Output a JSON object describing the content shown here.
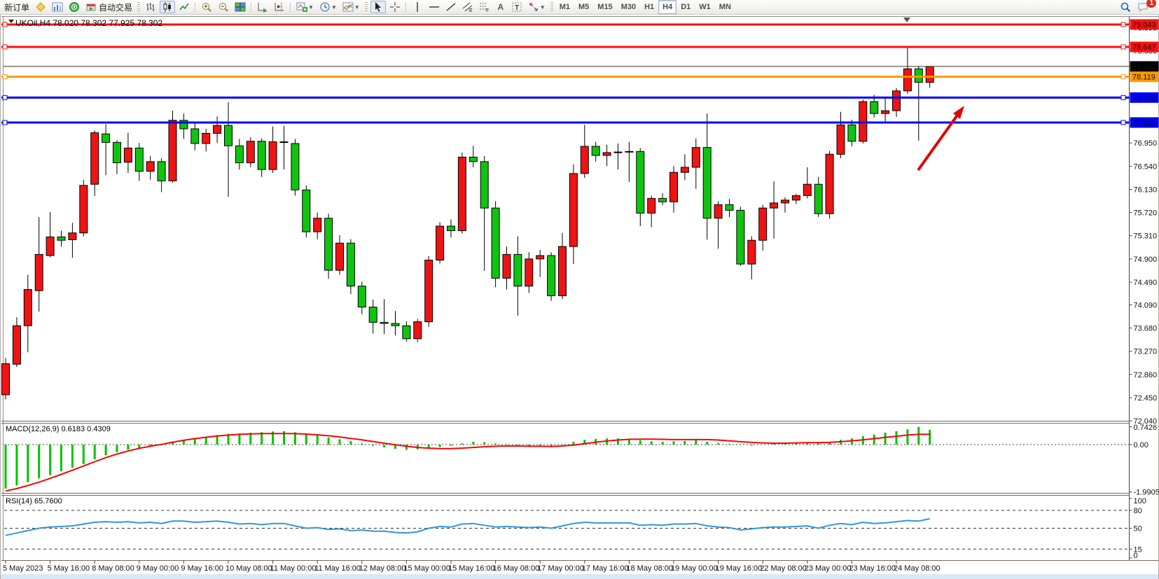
{
  "toolbar": {
    "new_order_label": "新订单",
    "auto_trading_label": "自动交易",
    "text_tool_glyph": "A",
    "label_tool_glyph": "T",
    "channel_tool_glyph": "E",
    "fibonacci_tool_glyph": "F",
    "timeframes": [
      "M1",
      "M5",
      "M15",
      "M30",
      "H1",
      "H4",
      "D1",
      "W1",
      "MN"
    ],
    "active_timeframe": "H4",
    "notification_badge": "1"
  },
  "chart_data": {
    "type": "candlestick",
    "symbol_title": "UKOil,H4 78.020 78.302 77.925 78.302",
    "current_bar": {
      "open": "78.020",
      "high": "78.302",
      "low": "77.925",
      "close": "78.302"
    },
    "price_axis_ticks": [
      "78.990",
      "78.580",
      "78.170",
      "77.760",
      "77.350",
      "76.950",
      "76.540",
      "76.130",
      "75.720",
      "75.310",
      "74.900",
      "74.490",
      "74.090",
      "73.680",
      "73.270",
      "72.860",
      "72.450",
      "72.040"
    ],
    "price_badges": [
      {
        "value": "79.043",
        "color": "#fe0e0e"
      },
      {
        "value": "78.647",
        "color": "#fe0e0e"
      },
      {
        "value": "78.302",
        "color": "#000000"
      },
      {
        "value": "78.119",
        "color": "#ff9800"
      },
      {
        "value": "77.752",
        "color": "#0000fe"
      },
      {
        "value": "77.311",
        "color": "#0000fe"
      }
    ],
    "horizontal_lines": [
      {
        "price": 79.043,
        "color": "#fe0e0e"
      },
      {
        "price": 78.647,
        "color": "#fe0e0e"
      },
      {
        "price": 78.119,
        "color": "#ff9800"
      },
      {
        "price": 77.752,
        "color": "#0000fe"
      },
      {
        "price": 77.311,
        "color": "#0000fe"
      }
    ],
    "bid_line_price": 78.302,
    "colors": {
      "bull": "#ef1414",
      "bear": "#0fc40f",
      "macd_hist": "#00c400",
      "macd_signal": "#f50505",
      "rsi": "#2f97dc",
      "arrow": "#e00000"
    },
    "candles_ohlc": [
      [
        72.5,
        73.15,
        72.42,
        73.05
      ],
      [
        73.04,
        73.87,
        72.99,
        73.72
      ],
      [
        73.72,
        74.62,
        73.25,
        74.36
      ],
      [
        74.34,
        75.64,
        73.97,
        74.98
      ],
      [
        74.96,
        75.73,
        74.93,
        75.29
      ],
      [
        75.29,
        75.4,
        75.12,
        75.23
      ],
      [
        75.24,
        75.54,
        74.92,
        75.36
      ],
      [
        75.36,
        76.3,
        75.3,
        76.2
      ],
      [
        76.22,
        77.17,
        76.01,
        77.13
      ],
      [
        77.11,
        77.28,
        76.38,
        76.96
      ],
      [
        76.96,
        77.0,
        76.4,
        76.6
      ],
      [
        76.61,
        77.13,
        76.42,
        76.86
      ],
      [
        76.86,
        76.95,
        76.28,
        76.45
      ],
      [
        76.45,
        76.72,
        76.3,
        76.62
      ],
      [
        76.62,
        76.68,
        76.08,
        76.28
      ],
      [
        76.28,
        77.52,
        76.25,
        77.35
      ],
      [
        77.35,
        77.47,
        77.02,
        77.2
      ],
      [
        77.2,
        77.3,
        76.82,
        76.94
      ],
      [
        76.94,
        77.2,
        76.8,
        77.12
      ],
      [
        77.12,
        77.42,
        76.95,
        77.26
      ],
      [
        77.26,
        77.67,
        76.0,
        76.9
      ],
      [
        76.9,
        77.02,
        76.48,
        76.6
      ],
      [
        76.6,
        77.05,
        76.52,
        76.98
      ],
      [
        76.98,
        77.03,
        76.35,
        76.48
      ],
      [
        76.48,
        77.24,
        76.42,
        76.97
      ],
      [
        76.97,
        77.25,
        76.48,
        76.96
      ],
      [
        76.94,
        77.02,
        76.02,
        76.12
      ],
      [
        76.12,
        76.2,
        75.28,
        75.38
      ],
      [
        75.38,
        75.72,
        75.25,
        75.62
      ],
      [
        75.62,
        75.7,
        74.55,
        74.7
      ],
      [
        74.7,
        75.32,
        74.62,
        75.18
      ],
      [
        75.18,
        75.25,
        74.28,
        74.42
      ],
      [
        74.42,
        74.5,
        73.92,
        74.05
      ],
      [
        74.05,
        74.18,
        73.58,
        73.78
      ],
      [
        73.78,
        74.19,
        73.57,
        73.76
      ],
      [
        73.76,
        73.98,
        73.55,
        73.72
      ],
      [
        73.72,
        73.8,
        73.44,
        73.49
      ],
      [
        73.49,
        73.84,
        73.43,
        73.79
      ],
      [
        73.79,
        74.95,
        73.7,
        74.88
      ],
      [
        74.88,
        75.55,
        74.82,
        75.48
      ],
      [
        75.48,
        75.6,
        75.28,
        75.4
      ],
      [
        75.4,
        76.78,
        75.35,
        76.7
      ],
      [
        76.7,
        76.9,
        76.52,
        76.62
      ],
      [
        76.62,
        76.72,
        74.69,
        75.8
      ],
      [
        75.8,
        75.92,
        74.4,
        74.56
      ],
      [
        74.56,
        75.12,
        74.36,
        74.98
      ],
      [
        74.98,
        75.3,
        73.9,
        74.42
      ],
      [
        74.42,
        75.02,
        74.3,
        74.9
      ],
      [
        74.9,
        75.06,
        74.58,
        74.96
      ],
      [
        74.96,
        75.02,
        74.16,
        74.25
      ],
      [
        74.25,
        75.36,
        74.19,
        75.12
      ],
      [
        75.12,
        76.57,
        74.81,
        76.41
      ],
      [
        76.41,
        77.27,
        76.33,
        76.89
      ],
      [
        76.89,
        76.97,
        76.62,
        76.73
      ],
      [
        76.73,
        76.92,
        76.54,
        76.78
      ],
      [
        76.78,
        76.94,
        76.48,
        76.79
      ],
      [
        76.79,
        76.97,
        76.26,
        76.8
      ],
      [
        76.8,
        76.86,
        75.48,
        75.71
      ],
      [
        75.71,
        76.02,
        75.46,
        75.97
      ],
      [
        75.97,
        76.06,
        75.85,
        75.91
      ],
      [
        75.91,
        76.54,
        75.72,
        76.43
      ],
      [
        76.43,
        76.75,
        76.29,
        76.52
      ],
      [
        76.52,
        77.03,
        76.14,
        76.87
      ],
      [
        76.87,
        77.47,
        75.24,
        75.62
      ],
      [
        75.62,
        75.92,
        75.08,
        75.86
      ],
      [
        75.86,
        75.96,
        75.64,
        75.76
      ],
      [
        75.76,
        75.82,
        74.78,
        74.81
      ],
      [
        74.81,
        75.3,
        74.54,
        75.23
      ],
      [
        75.23,
        75.86,
        75.05,
        75.8
      ],
      [
        75.8,
        76.27,
        75.26,
        75.89
      ],
      [
        75.89,
        75.99,
        75.72,
        75.94
      ],
      [
        75.94,
        76.05,
        75.87,
        76.02
      ],
      [
        76.02,
        76.52,
        75.97,
        76.22
      ],
      [
        76.22,
        76.35,
        75.64,
        75.7
      ],
      [
        75.7,
        76.81,
        75.61,
        76.75
      ],
      [
        76.75,
        77.5,
        76.68,
        77.27
      ],
      [
        77.27,
        77.36,
        76.89,
        76.98
      ],
      [
        76.98,
        77.72,
        76.94,
        77.68
      ],
      [
        77.68,
        77.8,
        77.4,
        77.47
      ],
      [
        77.47,
        77.74,
        77.31,
        77.52
      ],
      [
        77.52,
        77.92,
        77.41,
        77.87
      ],
      [
        77.87,
        78.63,
        77.82,
        78.26
      ],
      [
        78.26,
        78.31,
        76.99,
        78.02
      ],
      [
        78.02,
        78.302,
        77.925,
        78.302
      ]
    ],
    "x_labels": [
      "5 May 2023",
      "5 May 16:00",
      "8 May 08:00",
      "9 May 00:00",
      "9 May 16:00",
      "10 May 08:00",
      "11 May 00:00",
      "11 May 16:00",
      "12 May 08:00",
      "15 May 00:00",
      "15 May 16:00",
      "16 May 08:00",
      "17 May 00:00",
      "17 May 16:00",
      "18 May 08:00",
      "19 May 00:00",
      "19 May 16:00",
      "22 May 08:00",
      "23 May 00:00",
      "23 May 16:00",
      "24 May 08:00"
    ],
    "macd": {
      "label": "MACD(12,26,9) 0.6183 0.4309",
      "axis_ticks": [
        "0.7426",
        "0.00",
        "-1.9905"
      ],
      "histogram": [
        -1.85,
        -1.72,
        -1.58,
        -1.42,
        -1.28,
        -1.12,
        -0.97,
        -0.82,
        -0.62,
        -0.45,
        -0.32,
        -0.22,
        -0.15,
        -0.08,
        -0.02,
        0.08,
        0.18,
        0.25,
        0.32,
        0.4,
        0.45,
        0.47,
        0.5,
        0.52,
        0.55,
        0.56,
        0.52,
        0.45,
        0.38,
        0.3,
        0.22,
        0.15,
        0.05,
        -0.05,
        -0.12,
        -0.18,
        -0.22,
        -0.2,
        -0.15,
        -0.1,
        -0.05,
        0.05,
        0.12,
        0.1,
        0.05,
        0.02,
        -0.02,
        -0.05,
        -0.04,
        -0.08,
        0.02,
        0.12,
        0.2,
        0.24,
        0.26,
        0.26,
        0.25,
        0.18,
        0.14,
        0.12,
        0.14,
        0.15,
        0.18,
        0.12,
        0.06,
        0.03,
        -0.02,
        -0.04,
        0.0,
        0.04,
        0.06,
        0.08,
        0.1,
        0.06,
        0.12,
        0.2,
        0.26,
        0.35,
        0.42,
        0.5,
        0.56,
        0.64,
        0.7426,
        0.6183
      ],
      "signal": [
        -1.95,
        -1.85,
        -1.72,
        -1.58,
        -1.42,
        -1.25,
        -1.08,
        -0.9,
        -0.72,
        -0.55,
        -0.4,
        -0.27,
        -0.16,
        -0.07,
        0.01,
        0.1,
        0.18,
        0.25,
        0.31,
        0.36,
        0.4,
        0.43,
        0.45,
        0.46,
        0.465,
        0.465,
        0.46,
        0.44,
        0.41,
        0.37,
        0.32,
        0.26,
        0.2,
        0.13,
        0.06,
        -0.01,
        -0.07,
        -0.12,
        -0.15,
        -0.17,
        -0.17,
        -0.15,
        -0.12,
        -0.09,
        -0.07,
        -0.06,
        -0.06,
        -0.07,
        -0.07,
        -0.08,
        -0.06,
        -0.02,
        0.04,
        0.1,
        0.15,
        0.19,
        0.22,
        0.23,
        0.23,
        0.22,
        0.21,
        0.21,
        0.21,
        0.21,
        0.19,
        0.16,
        0.12,
        0.09,
        0.07,
        0.06,
        0.06,
        0.07,
        0.08,
        0.08,
        0.09,
        0.12,
        0.16,
        0.2,
        0.25,
        0.3,
        0.35,
        0.4,
        0.43,
        0.4309
      ]
    },
    "rsi": {
      "label": "RSI(14) 65.7600",
      "axis_ticks": [
        "100",
        "80",
        "50",
        "15",
        "0"
      ],
      "levels": [
        80,
        50,
        15
      ],
      "series": [
        38,
        42,
        46,
        50,
        52,
        53,
        54,
        57,
        60,
        61,
        60,
        61,
        59,
        60,
        58,
        62,
        62,
        60,
        61,
        62,
        60,
        57,
        58,
        56,
        58,
        58,
        54,
        50,
        51,
        48,
        49,
        46,
        47,
        45,
        45,
        43,
        42,
        44,
        50,
        53,
        52,
        57,
        58,
        55,
        52,
        53,
        52,
        51,
        52,
        50,
        54,
        58,
        60,
        59,
        59,
        59,
        59,
        55,
        56,
        55,
        57,
        57,
        58,
        54,
        52,
        51,
        47,
        49,
        51,
        52,
        52,
        53,
        54,
        50,
        55,
        58,
        56,
        60,
        58,
        59,
        61,
        63,
        62,
        66
      ]
    }
  }
}
